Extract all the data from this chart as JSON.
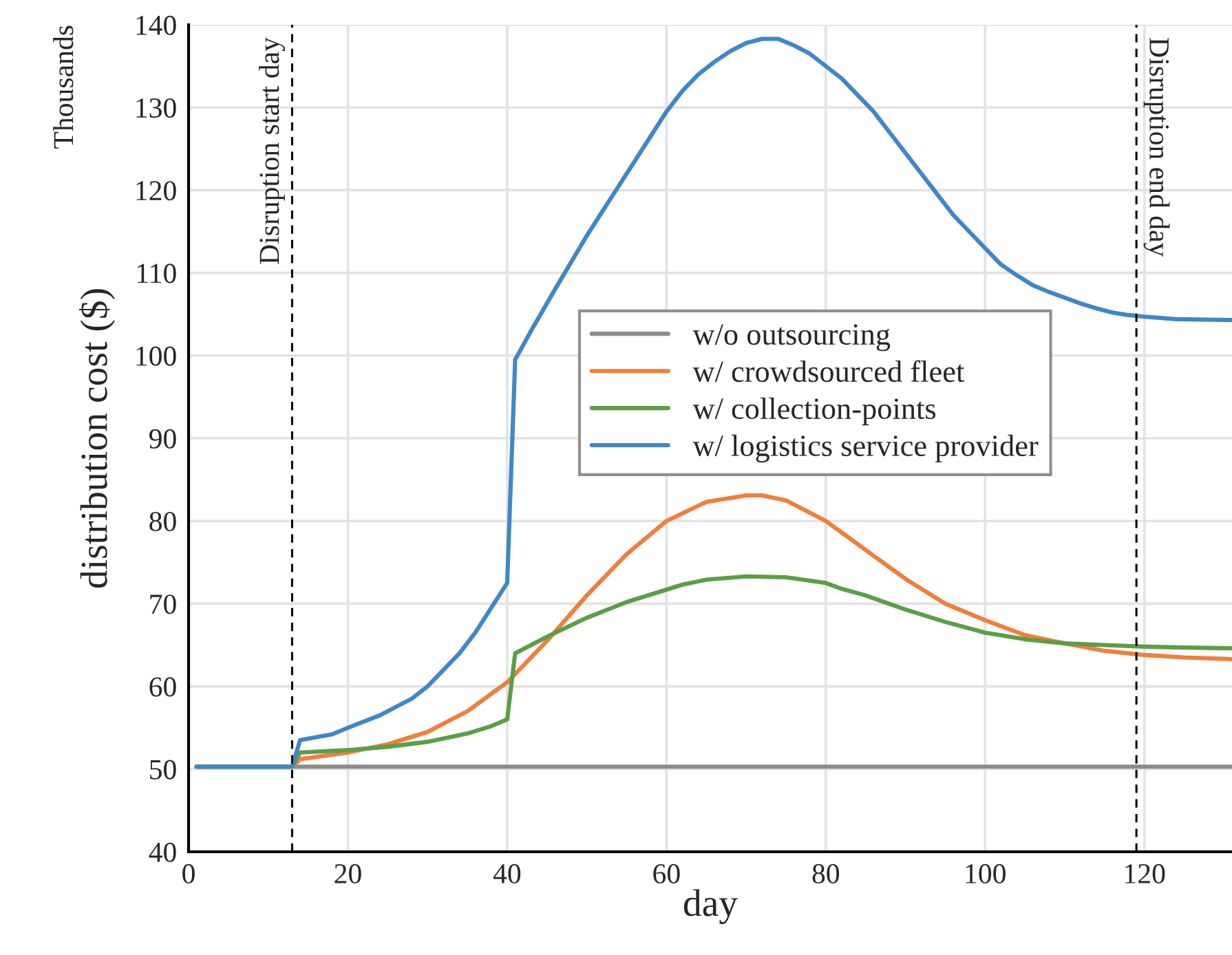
{
  "chart_data": {
    "type": "line",
    "xlabel": "day",
    "ylabel": "distribution cost ($)",
    "annotations": [
      "Thousands"
    ],
    "xlim": [
      0,
      131
    ],
    "xticks": [
      0,
      20,
      40,
      60,
      80,
      100,
      120
    ],
    "ylim": [
      40,
      140
    ],
    "yticks": [
      40,
      50,
      60,
      70,
      80,
      90,
      100,
      110,
      120,
      130,
      140
    ],
    "grid": true,
    "legend": "center",
    "marker": "none",
    "line_style": "solid",
    "ref_lines": [
      {
        "axis": "x",
        "value": 13,
        "label": "Disruption start day",
        "line_style": "dashed",
        "color": "#000000"
      },
      {
        "axis": "x",
        "value": 119,
        "label": "Disruption end day",
        "line_style": "dashed",
        "color": "#000000"
      }
    ],
    "series": [
      {
        "name": "w/o outsourcing",
        "color": "#8c8c8c",
        "x": [
          1,
          13,
          131
        ],
        "values": [
          50.3,
          50.3,
          50.3
        ]
      },
      {
        "name": "w/ crowdsourced fleet",
        "color": "#f07f3c",
        "x": [
          1,
          13,
          14,
          20,
          25,
          30,
          35,
          40,
          45,
          50,
          55,
          60,
          65,
          70,
          72,
          75,
          80,
          85,
          90,
          95,
          100,
          105,
          110,
          115,
          120,
          125,
          131
        ],
        "values": [
          50.3,
          50.3,
          51.2,
          52,
          53,
          54.5,
          57,
          60.5,
          65.5,
          71,
          76,
          80,
          82.3,
          83.1,
          83.1,
          82.5,
          80,
          76.5,
          73,
          70,
          68,
          66.2,
          65.2,
          64.3,
          63.8,
          63.5,
          63.3
        ]
      },
      {
        "name": "w/ collection-points",
        "color": "#5b9e47",
        "x": [
          1,
          13,
          14,
          20,
          25,
          30,
          35,
          38,
          40,
          41,
          45,
          50,
          55,
          60,
          62,
          65,
          70,
          75,
          80,
          82,
          85,
          90,
          95,
          100,
          105,
          110,
          115,
          120,
          125,
          131
        ],
        "values": [
          50.3,
          50.3,
          52,
          52.3,
          52.7,
          53.3,
          54.3,
          55.2,
          56,
          64,
          66,
          68.3,
          70.2,
          71.7,
          72.3,
          72.9,
          73.3,
          73.2,
          72.5,
          71.8,
          71,
          69.3,
          67.8,
          66.5,
          65.7,
          65.2,
          65,
          64.8,
          64.7,
          64.6
        ]
      },
      {
        "name": "w/ logistics service provider",
        "color": "#3f87c8",
        "x": [
          1,
          13,
          14,
          18,
          20,
          24,
          26,
          28,
          30,
          32,
          34,
          36,
          38,
          40,
          41,
          43,
          46,
          50,
          53,
          56,
          58,
          60,
          62,
          64,
          66,
          68,
          70,
          72,
          74,
          76,
          78,
          80,
          82,
          84,
          86,
          88,
          90,
          92,
          94,
          96,
          98,
          100,
          102,
          104,
          106,
          108,
          110,
          112,
          114,
          116,
          118,
          120,
          124,
          131
        ],
        "values": [
          50.3,
          50.3,
          53.5,
          54.2,
          55,
          56.5,
          57.5,
          58.5,
          60,
          62,
          64,
          66.5,
          69.5,
          72.5,
          99.5,
          103,
          108,
          114.5,
          119,
          123.5,
          126.5,
          129.5,
          132,
          134,
          135.5,
          136.8,
          137.8,
          138.3,
          138.3,
          137.5,
          136.5,
          135,
          133.5,
          131.5,
          129.5,
          127,
          124.5,
          122,
          119.5,
          117,
          115,
          113,
          111,
          109.7,
          108.5,
          107.7,
          107,
          106.3,
          105.7,
          105.2,
          104.9,
          104.7,
          104.4,
          104.3
        ]
      }
    ]
  }
}
